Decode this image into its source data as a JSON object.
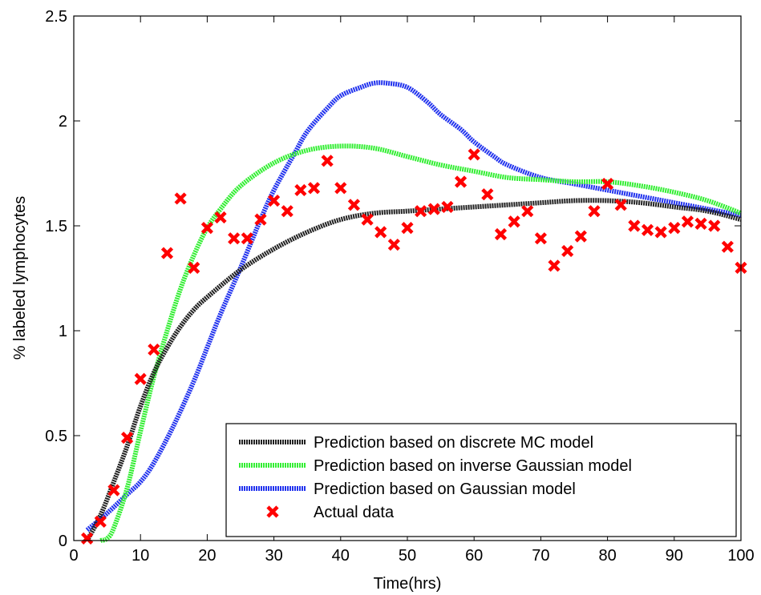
{
  "chart_data": {
    "type": "line",
    "xlabel": "Time(hrs)",
    "ylabel": "% labeled lymphocytes",
    "xlim": [
      0,
      100
    ],
    "ylim": [
      0,
      2.5
    ],
    "xticks": [
      0,
      10,
      20,
      30,
      40,
      50,
      60,
      70,
      80,
      90,
      100
    ],
    "yticks": [
      0,
      0.5,
      1,
      1.5,
      2,
      2.5
    ],
    "xtick_labels": [
      "0",
      "10",
      "20",
      "30",
      "40",
      "50",
      "60",
      "70",
      "80",
      "90",
      "100"
    ],
    "ytick_labels": [
      "0",
      "0.5",
      "1",
      "1.5",
      "2",
      "2.5"
    ],
    "grid": false,
    "legend_position": "bottom-right",
    "series": [
      {
        "name": "Prediction based on discrete MC model",
        "kind": "line",
        "color": "#222222",
        "x": [
          2,
          4,
          6,
          8,
          10,
          12,
          14,
          16,
          18,
          20,
          25,
          30,
          35,
          40,
          45,
          50,
          55,
          60,
          65,
          70,
          75,
          80,
          85,
          90,
          95,
          100
        ],
        "y": [
          0.0,
          0.12,
          0.28,
          0.45,
          0.64,
          0.8,
          0.92,
          1.02,
          1.1,
          1.16,
          1.29,
          1.39,
          1.47,
          1.53,
          1.56,
          1.57,
          1.58,
          1.59,
          1.6,
          1.61,
          1.62,
          1.62,
          1.61,
          1.59,
          1.57,
          1.53
        ]
      },
      {
        "name": "Prediction based on inverse Gaussian model",
        "kind": "line",
        "color": "#33ee33",
        "x": [
          4,
          5,
          6,
          8,
          10,
          12,
          14,
          16,
          18,
          20,
          22,
          25,
          30,
          35,
          40,
          45,
          50,
          55,
          60,
          65,
          70,
          75,
          80,
          85,
          90,
          95,
          100
        ],
        "y": [
          0.0,
          0.01,
          0.06,
          0.25,
          0.52,
          0.78,
          1.0,
          1.2,
          1.36,
          1.49,
          1.58,
          1.69,
          1.8,
          1.86,
          1.88,
          1.87,
          1.83,
          1.79,
          1.76,
          1.73,
          1.72,
          1.71,
          1.71,
          1.69,
          1.66,
          1.62,
          1.56
        ]
      },
      {
        "name": "Prediction based on Gaussian model",
        "kind": "line",
        "color": "#2233ee",
        "x": [
          2,
          5,
          8,
          10,
          12,
          15,
          18,
          20,
          22,
          25,
          28,
          30,
          33,
          35,
          38,
          40,
          43,
          45,
          47,
          50,
          53,
          55,
          58,
          60,
          63,
          65,
          70,
          75,
          80,
          85,
          90,
          95,
          100
        ],
        "y": [
          0.05,
          0.13,
          0.22,
          0.28,
          0.37,
          0.55,
          0.76,
          0.92,
          1.08,
          1.3,
          1.53,
          1.67,
          1.84,
          1.95,
          2.06,
          2.12,
          2.16,
          2.18,
          2.18,
          2.16,
          2.09,
          2.03,
          1.96,
          1.9,
          1.83,
          1.79,
          1.73,
          1.7,
          1.67,
          1.64,
          1.61,
          1.58,
          1.55
        ]
      },
      {
        "name": "Actual data",
        "kind": "scatter",
        "color": "#ff0000",
        "x": [
          2,
          4,
          6,
          8,
          10,
          12,
          14,
          16,
          18,
          20,
          22,
          24,
          26,
          28,
          30,
          32,
          34,
          36,
          38,
          40,
          42,
          44,
          46,
          48,
          50,
          52,
          54,
          56,
          58,
          60,
          62,
          64,
          66,
          68,
          70,
          72,
          74,
          76,
          78,
          80,
          82,
          84,
          86,
          88,
          90,
          92,
          94,
          96,
          98,
          100
        ],
        "y": [
          0.01,
          0.09,
          0.24,
          0.49,
          0.77,
          0.91,
          1.37,
          1.63,
          1.3,
          1.49,
          1.54,
          1.44,
          1.44,
          1.53,
          1.62,
          1.57,
          1.67,
          1.68,
          1.81,
          1.68,
          1.6,
          1.53,
          1.47,
          1.41,
          1.49,
          1.57,
          1.58,
          1.59,
          1.71,
          1.84,
          1.65,
          1.46,
          1.52,
          1.57,
          1.44,
          1.31,
          1.38,
          1.45,
          1.57,
          1.7,
          1.6,
          1.5,
          1.48,
          1.47,
          1.49,
          1.52,
          1.51,
          1.5,
          1.4,
          1.3
        ]
      }
    ]
  }
}
